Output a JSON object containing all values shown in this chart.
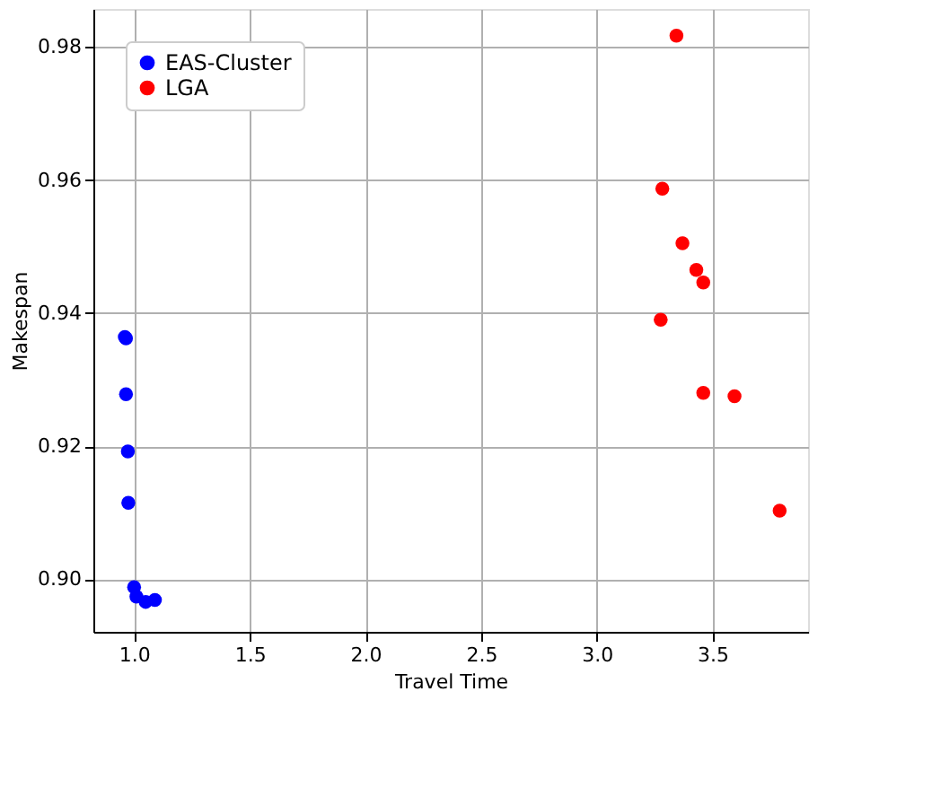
{
  "chart_data": {
    "type": "scatter",
    "xlabel": "Travel Time",
    "ylabel": "Makespan",
    "series": [
      {
        "name": "EAS-Cluster",
        "color": "#0000ff",
        "x": [
          0.96,
          0.965,
          0.965,
          0.973,
          0.975,
          1.0,
          1.01,
          1.05,
          1.09
        ],
        "values": [
          0.9364,
          0.9362,
          0.9278,
          0.9192,
          0.9115,
          0.8988,
          0.8974,
          0.8966,
          0.8969
        ]
      },
      {
        "name": "LGA",
        "color": "#ff0000",
        "x": [
          3.344,
          3.283,
          3.37,
          3.43,
          3.46,
          3.276,
          3.46,
          3.595,
          3.79
        ],
        "values": [
          0.9817,
          0.9587,
          0.9505,
          0.9465,
          0.9446,
          0.939,
          0.928,
          0.9275,
          0.9103
        ]
      }
    ],
    "xlim": [
      0.824,
      3.913
    ],
    "ylim": [
      0.8921,
      0.9857
    ],
    "xticks": [
      {
        "value": 1.0,
        "label": "1.0"
      },
      {
        "value": 1.5,
        "label": "1.5"
      },
      {
        "value": 2.0,
        "label": "2.0"
      },
      {
        "value": 2.5,
        "label": "2.5"
      },
      {
        "value": 3.0,
        "label": "3.0"
      },
      {
        "value": 3.5,
        "label": "3.5"
      }
    ],
    "yticks": [
      {
        "value": 0.9,
        "label": "0.90"
      },
      {
        "value": 0.92,
        "label": "0.92"
      },
      {
        "value": 0.94,
        "label": "0.94"
      },
      {
        "value": 0.96,
        "label": "0.96"
      },
      {
        "value": 0.98,
        "label": "0.98"
      }
    ],
    "grid": true,
    "legend": "top left",
    "marker": "circle"
  }
}
